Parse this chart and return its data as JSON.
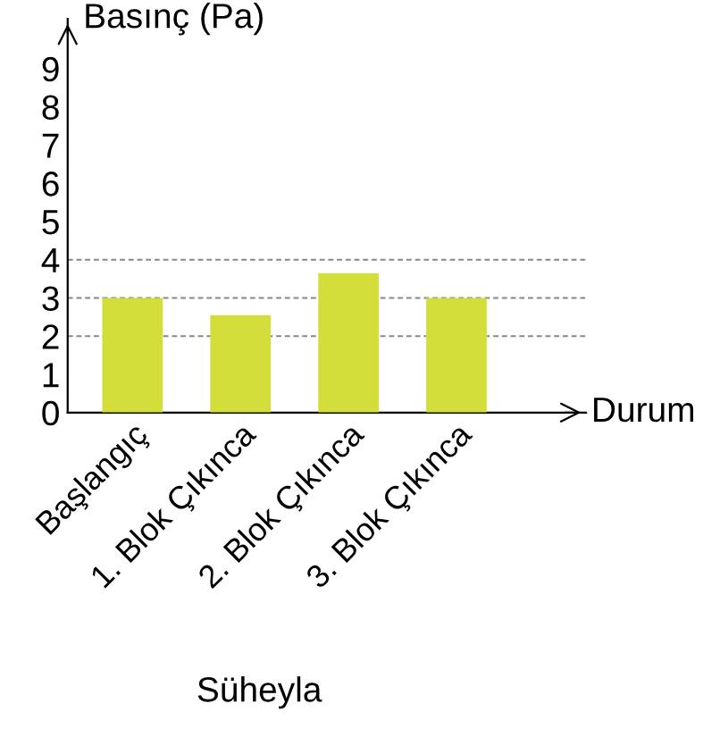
{
  "chart_data": {
    "type": "bar",
    "title": "Süheyla",
    "xlabel": "Durum",
    "ylabel": "Basınç (Pa)",
    "categories": [
      "Başlangıç",
      "1. Blok Çıkınca",
      "2. Blok Çıkınca",
      "3. Blok Çıkınca"
    ],
    "values": [
      3.0,
      2.55,
      3.65,
      3.0
    ],
    "color": "#d4de3a",
    "ylim": [
      0,
      10.3
    ],
    "yticks": [
      0,
      1,
      2,
      3,
      4,
      5,
      6,
      7,
      8,
      9
    ],
    "ref_lines": [
      {
        "axis": "y",
        "value": 2,
        "label": null,
        "color": "#888888",
        "line_style": "dashed"
      },
      {
        "axis": "y",
        "value": 3,
        "label": null,
        "color": "#888888",
        "line_style": "dashed"
      },
      {
        "axis": "y",
        "value": 4,
        "label": null,
        "color": "#888888",
        "line_style": "dashed"
      }
    ],
    "grid": false,
    "legend": false
  }
}
